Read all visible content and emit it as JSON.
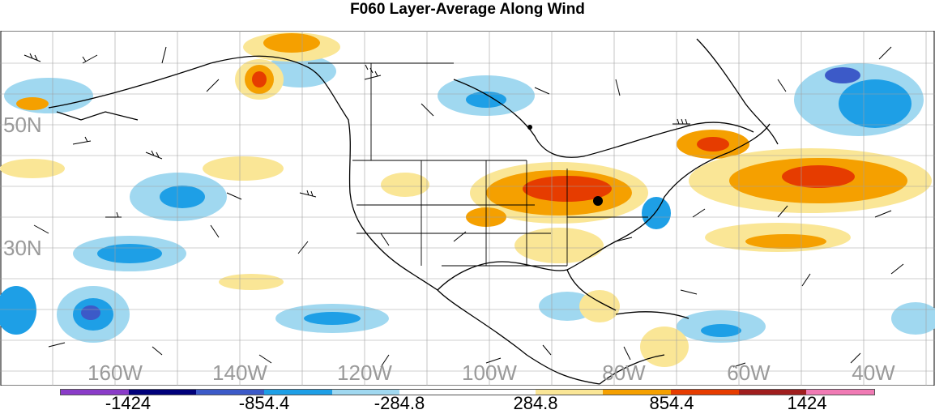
{
  "title": "F060 Layer-Average Along Wind",
  "lat_labels": [
    "50N",
    "30N"
  ],
  "lon_labels": [
    "160W",
    "140W",
    "120W",
    "100W",
    "80W",
    "60W",
    "40W"
  ],
  "colorbar": {
    "labels": [
      "-1424",
      "-854.4",
      "-284.8",
      "284.8",
      "854.4",
      "1424"
    ],
    "colors": [
      "#8a3cc8",
      "#00007a",
      "#3c5ac8",
      "#1e9fe6",
      "#a0d8f0",
      "#ffffff",
      "#ffffff",
      "#fae696",
      "#f5a000",
      "#e63c00",
      "#a01e1e",
      "#f07ab4"
    ]
  },
  "colors": {
    "warm_light": "#fae696",
    "warm_mid": "#f5a000",
    "warm_dark": "#e63c00",
    "cool_light": "#a0d8f0",
    "cool_mid": "#1e9fe6",
    "cool_dark": "#3c5ac8",
    "label_gray": "#9a9a9a"
  }
}
